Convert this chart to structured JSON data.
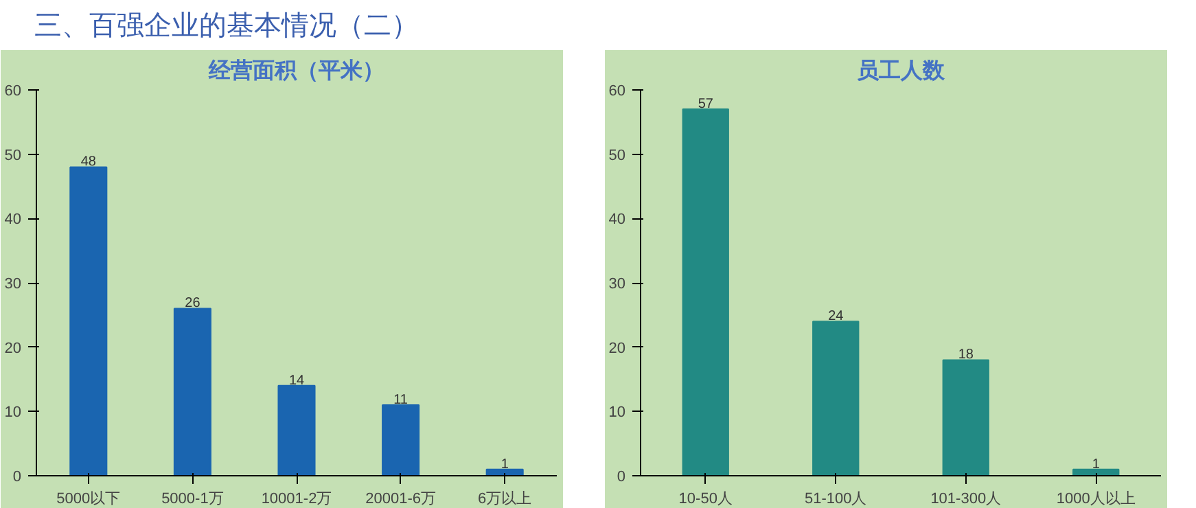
{
  "chart_data": [
    {
      "type": "bar",
      "title": "经营面积（平米）",
      "annotations": [
        "三、百强企业的基本情况（二）"
      ],
      "categories": [
        "5000以下",
        "5000-1万",
        "10001-2万",
        "20001-6万",
        "6万以上"
      ],
      "values": [
        48,
        26,
        14,
        11,
        1
      ],
      "color": "#1a65b0",
      "ylim": [
        0,
        60
      ],
      "yticks": [
        0,
        10,
        20,
        30,
        40,
        50,
        60
      ],
      "data_labels": true,
      "grid": false
    },
    {
      "type": "bar",
      "title": "员工人数",
      "categories": [
        "10-50人",
        "51-100人",
        "101-300人",
        "1000人以上"
      ],
      "values": [
        57,
        24,
        18,
        1
      ],
      "color": "#228a84",
      "ylim": [
        0,
        60
      ],
      "yticks": [
        0,
        10,
        20,
        30,
        40,
        50,
        60
      ],
      "data_labels": true,
      "grid": false
    }
  ]
}
